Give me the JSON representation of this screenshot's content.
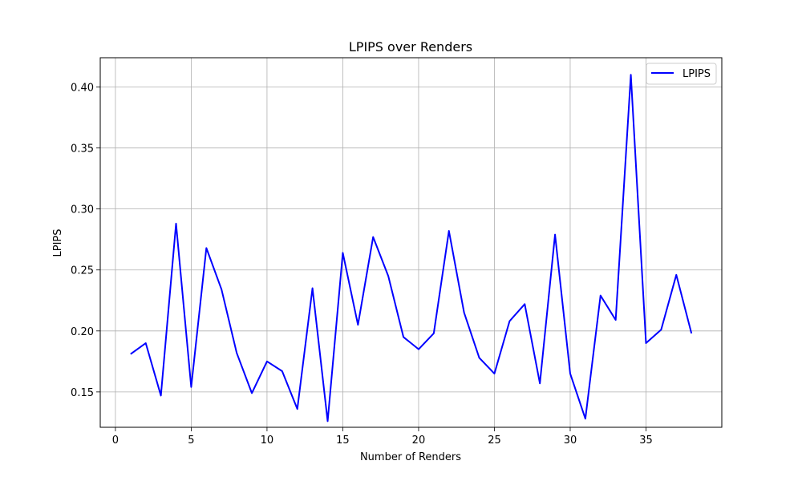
{
  "chart_data": {
    "type": "line",
    "title": "LPIPS over Renders",
    "xlabel": "Number of Renders",
    "ylabel": "LPIPS",
    "xlim": [
      -1,
      40
    ],
    "ylim": [
      0.121,
      0.424
    ],
    "xticks": [
      0,
      5,
      10,
      15,
      20,
      25,
      30,
      35
    ],
    "yticks": [
      0.15,
      0.2,
      0.25,
      0.3,
      0.35,
      0.4
    ],
    "ytick_labels": [
      "0.15",
      "0.20",
      "0.25",
      "0.30",
      "0.35",
      "0.40"
    ],
    "grid": true,
    "legend_position": "top-right",
    "series": [
      {
        "name": "LPIPS",
        "color": "#0000ff",
        "x": [
          1,
          2,
          3,
          4,
          5,
          6,
          7,
          8,
          9,
          10,
          11,
          12,
          13,
          14,
          15,
          16,
          17,
          18,
          19,
          20,
          21,
          22,
          23,
          24,
          25,
          26,
          27,
          28,
          29,
          30,
          31,
          32,
          33,
          34,
          35,
          36,
          37,
          38
        ],
        "values": [
          0.181,
          0.19,
          0.147,
          0.288,
          0.154,
          0.268,
          0.234,
          0.182,
          0.149,
          0.175,
          0.167,
          0.136,
          0.235,
          0.126,
          0.264,
          0.205,
          0.277,
          0.245,
          0.195,
          0.185,
          0.198,
          0.282,
          0.215,
          0.178,
          0.165,
          0.208,
          0.222,
          0.157,
          0.279,
          0.165,
          0.128,
          0.229,
          0.209,
          0.41,
          0.19,
          0.201,
          0.246,
          0.198
        ]
      }
    ]
  }
}
